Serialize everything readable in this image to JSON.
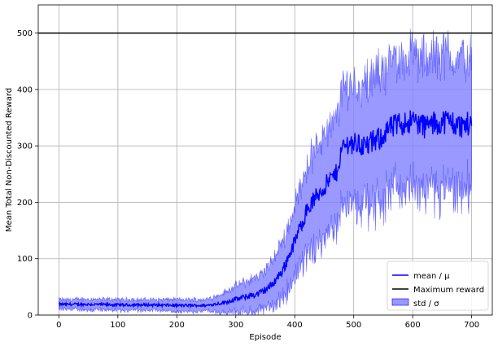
{
  "chart_data": {
    "type": "line",
    "title": "",
    "xlabel": "Episode",
    "ylabel": "Mean Total Non-Discounted Reward",
    "xlim": [
      -35,
      735
    ],
    "ylim": [
      0,
      550
    ],
    "xticks": [
      0,
      100,
      200,
      300,
      400,
      500,
      600,
      700
    ],
    "yticks": [
      0,
      100,
      200,
      300,
      400,
      500
    ],
    "grid": true,
    "legend_position": "lower-right",
    "max_reward": 500,
    "mean_anchors": {
      "x": [
        0,
        50,
        100,
        150,
        200,
        250,
        280,
        300,
        320,
        340,
        360,
        380,
        400,
        420,
        440,
        460,
        470,
        480,
        490,
        500,
        520,
        540,
        560,
        580,
        600,
        620,
        640,
        660,
        680,
        700
      ],
      "y": [
        19,
        19,
        18,
        18,
        17,
        17,
        22,
        28,
        33,
        38,
        52,
        80,
        130,
        185,
        215,
        240,
        250,
        295,
        305,
        305,
        300,
        310,
        330,
        340,
        345,
        335,
        340,
        345,
        335,
        340
      ]
    },
    "std_anchors": {
      "x": [
        0,
        50,
        100,
        150,
        200,
        250,
        270,
        300,
        340,
        360,
        380,
        400,
        420,
        440,
        460,
        480,
        490,
        500,
        550,
        600,
        650,
        700
      ],
      "y": [
        8,
        9,
        9,
        9,
        10,
        10,
        14,
        22,
        30,
        36,
        48,
        60,
        75,
        85,
        85,
        95,
        100,
        100,
        110,
        110,
        115,
        110
      ]
    },
    "series": [
      {
        "name": "mean / μ",
        "color": "#0000ff"
      },
      {
        "name": "Maximum reward",
        "color": "#000000"
      },
      {
        "name": "std / σ",
        "color": "#8080ff"
      }
    ]
  }
}
